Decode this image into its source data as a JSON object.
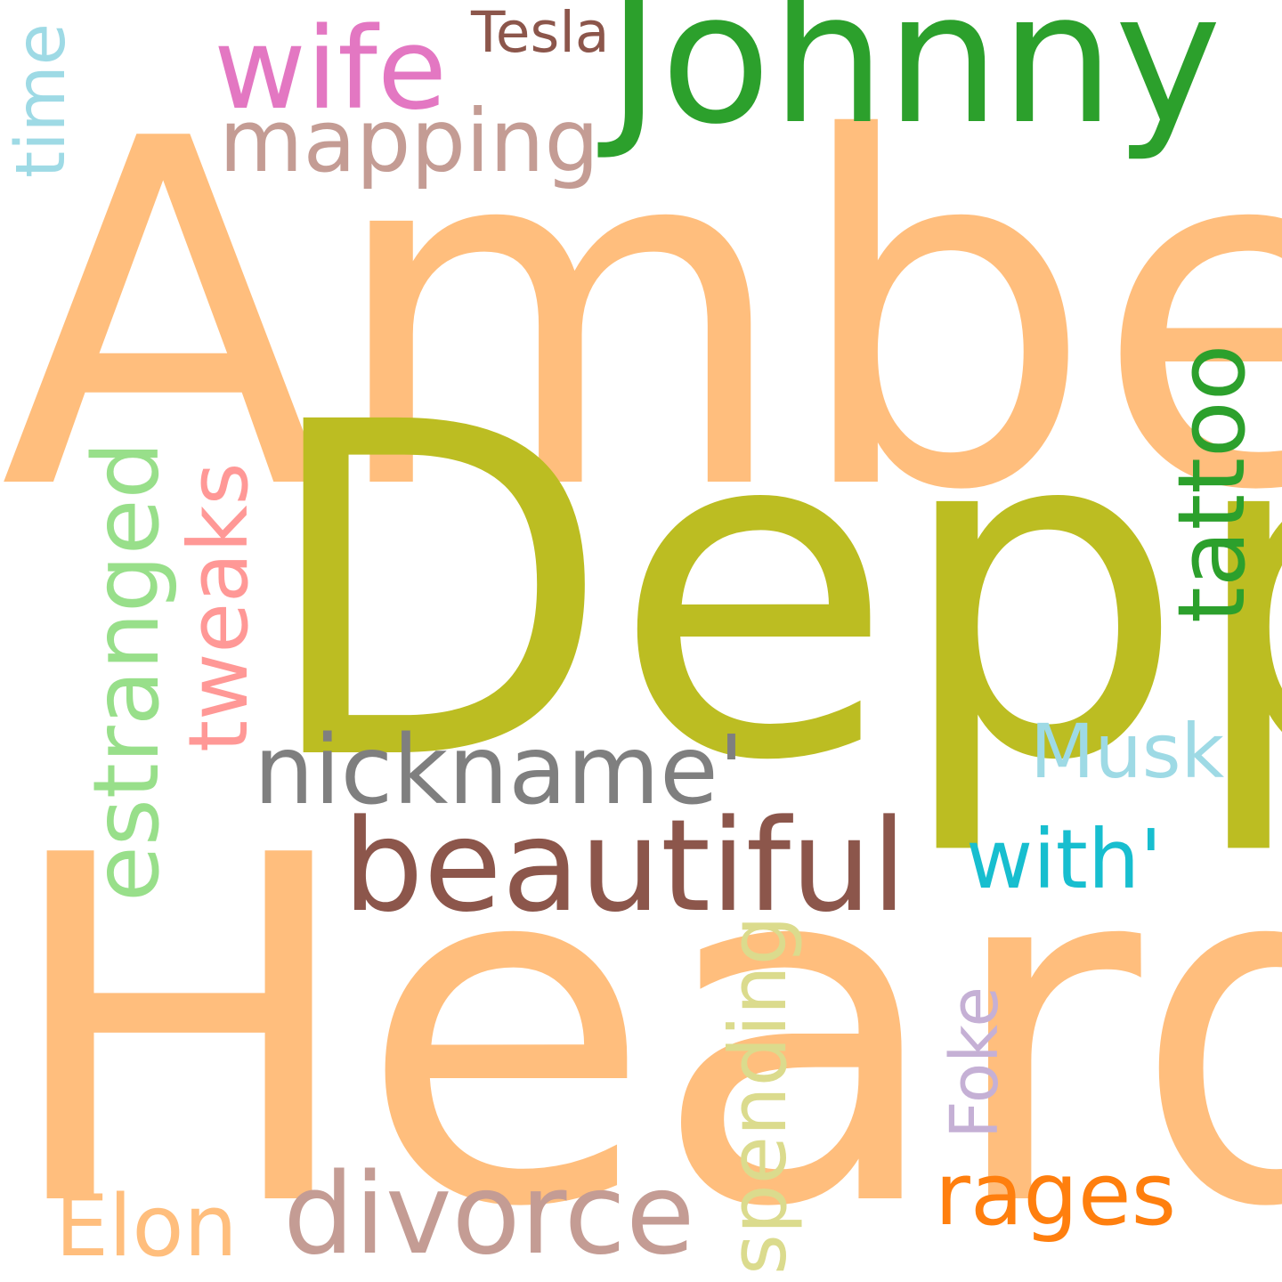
{
  "word_cloud": {
    "background_color": "#ffffff",
    "words": [
      {
        "text": "Amber",
        "color": "#ffbe7d",
        "orientation": "horizontal"
      },
      {
        "text": "Heard",
        "color": "#ffbe7d",
        "orientation": "horizontal"
      },
      {
        "text": "Depp",
        "color": "#bcbd22",
        "orientation": "horizontal"
      },
      {
        "text": "Johnny",
        "color": "#2ca02c",
        "orientation": "horizontal"
      },
      {
        "text": "beautiful",
        "color": "#8c564b",
        "orientation": "horizontal"
      },
      {
        "text": "wife",
        "color": "#e377c2",
        "orientation": "horizontal"
      },
      {
        "text": "divorce",
        "color": "#c49c94",
        "orientation": "horizontal"
      },
      {
        "text": "nickname'",
        "color": "#7f7f7f",
        "orientation": "horizontal"
      },
      {
        "text": "mapping",
        "color": "#c49c94",
        "orientation": "horizontal"
      },
      {
        "text": "rages",
        "color": "#ff7f0e",
        "orientation": "horizontal"
      },
      {
        "text": "with'",
        "color": "#17becf",
        "orientation": "horizontal"
      },
      {
        "text": "Elon",
        "color": "#ffbe7d",
        "orientation": "horizontal"
      },
      {
        "text": "Musk",
        "color": "#9edae5",
        "orientation": "horizontal"
      },
      {
        "text": "Tesla",
        "color": "#8c564b",
        "orientation": "horizontal"
      },
      {
        "text": "estranged",
        "color": "#98df8a",
        "orientation": "vertical"
      },
      {
        "text": "tattoo",
        "color": "#2ca02c",
        "orientation": "vertical"
      },
      {
        "text": "tweaks",
        "color": "#ff9896",
        "orientation": "vertical"
      },
      {
        "text": "spending",
        "color": "#dbdb8d",
        "orientation": "vertical"
      },
      {
        "text": "Foke",
        "color": "#c5b0d5",
        "orientation": "vertical"
      },
      {
        "text": "time",
        "color": "#9edae5",
        "orientation": "vertical"
      }
    ]
  }
}
